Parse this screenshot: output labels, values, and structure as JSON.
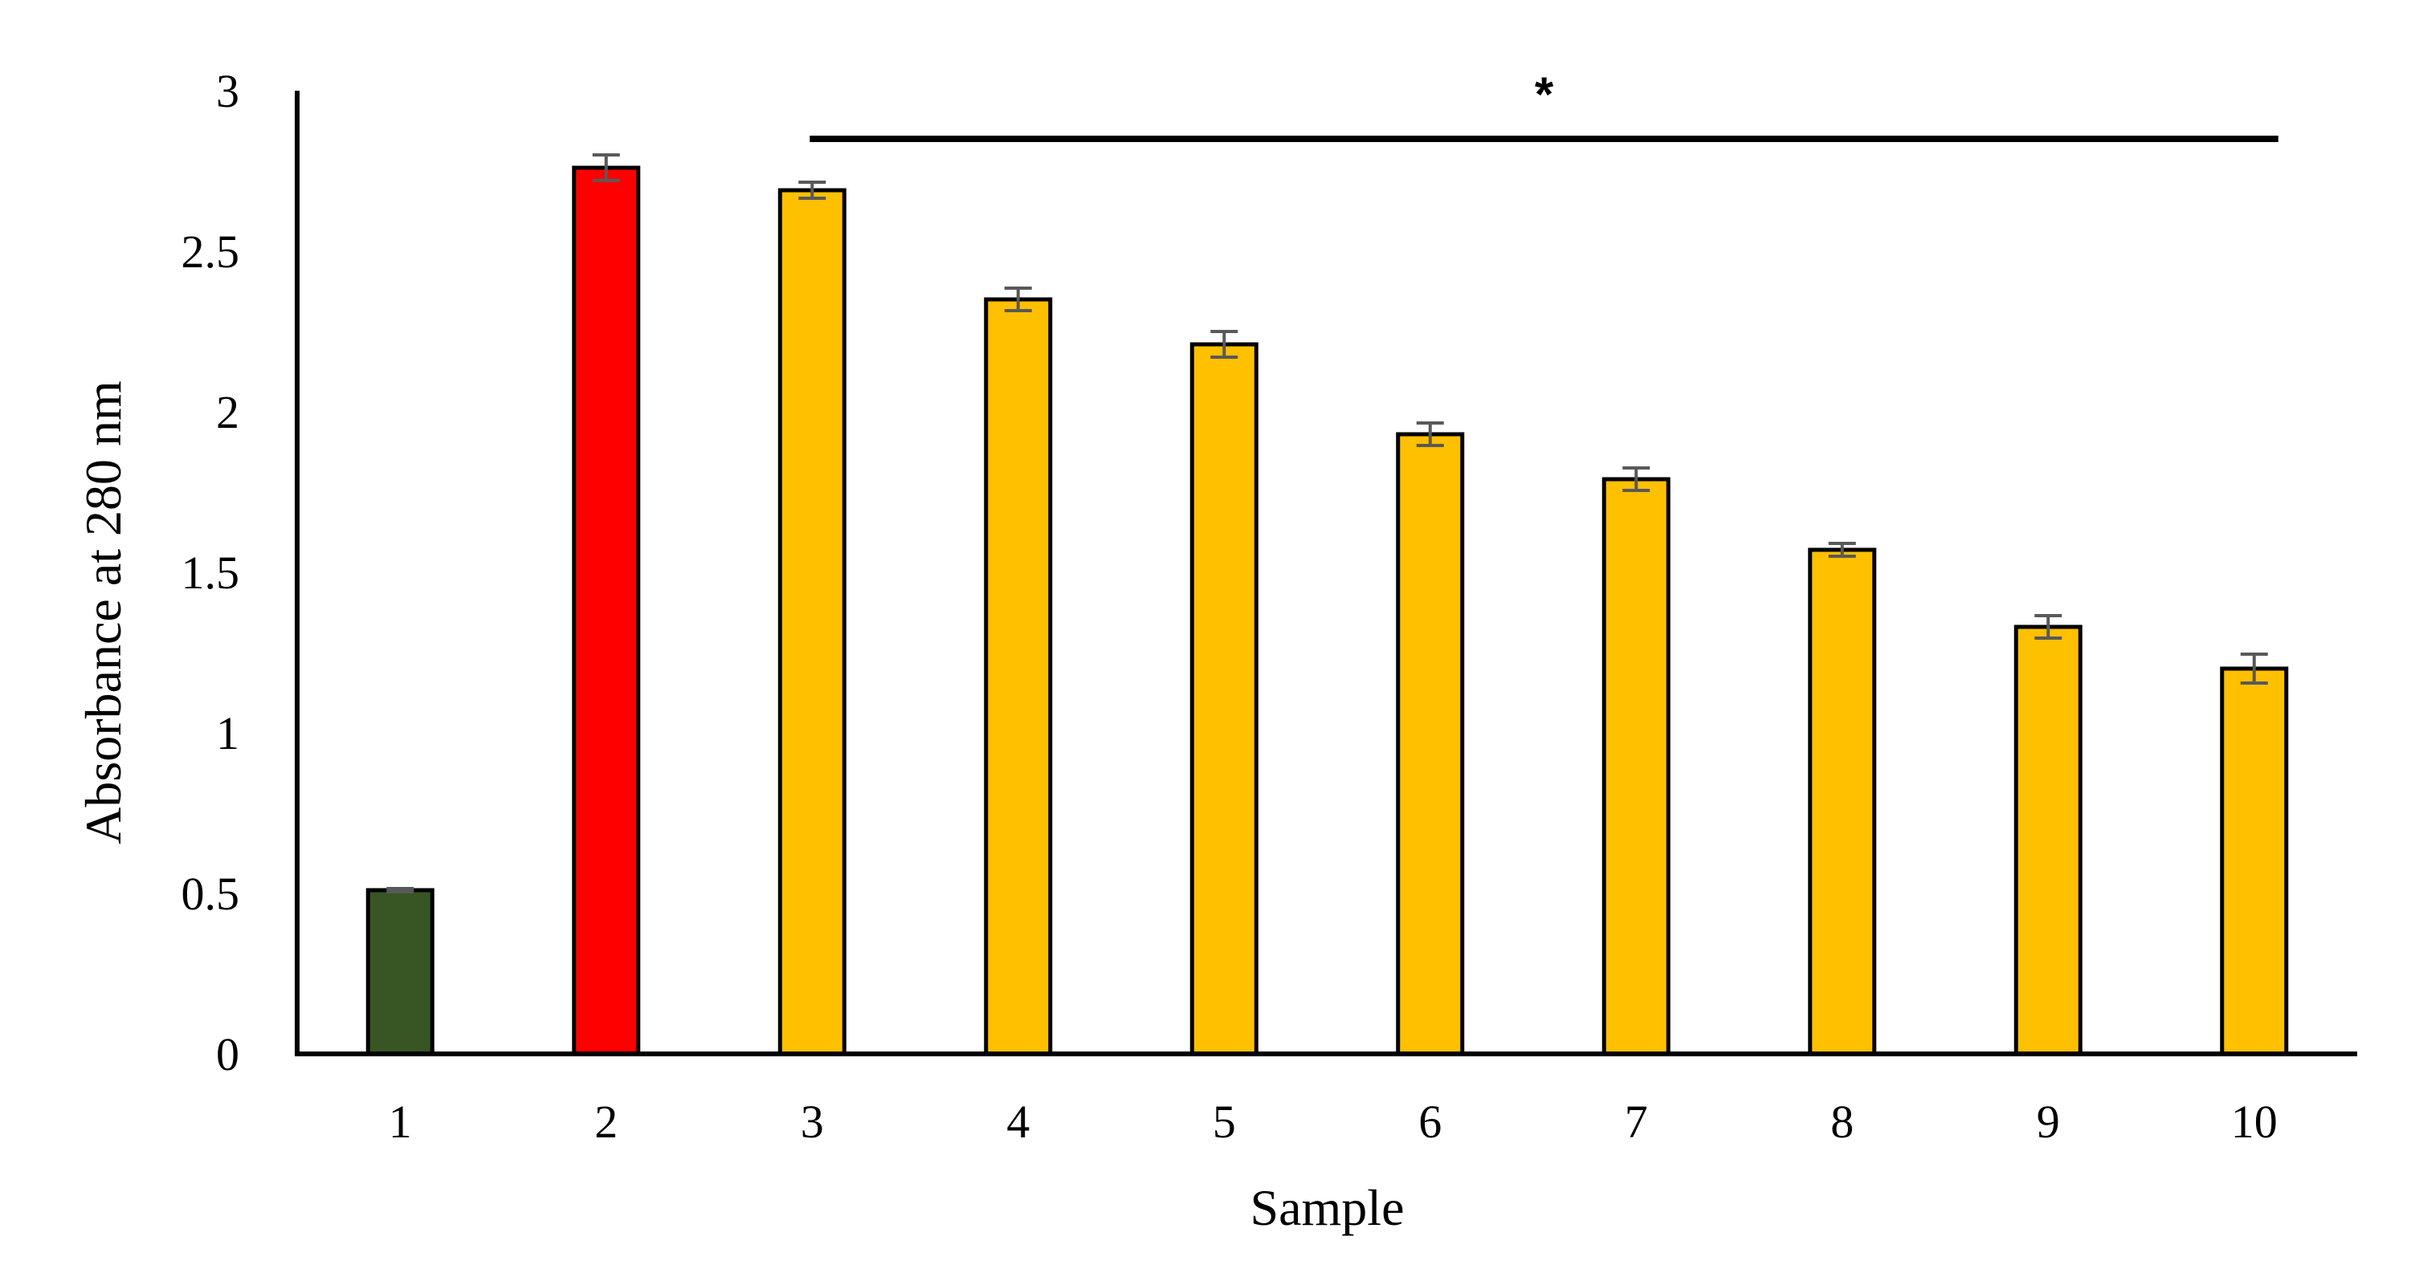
{
  "chart_data": {
    "type": "bar",
    "title": "",
    "xlabel": "Sample",
    "ylabel": "Absorbance at 280 nm",
    "ylim": [
      0,
      3
    ],
    "yticks": [
      "0",
      "0.5",
      "1",
      "1.5",
      "2",
      "2.5",
      "3"
    ],
    "grid": false,
    "legend": "none",
    "categories": [
      "1",
      "2",
      "3",
      "4",
      "5",
      "6",
      "7",
      "8",
      "9",
      "10"
    ],
    "values": [
      0.51,
      2.76,
      2.69,
      2.35,
      2.21,
      1.93,
      1.79,
      1.57,
      1.33,
      1.2
    ],
    "errors": [
      0.005,
      0.04,
      0.025,
      0.035,
      0.04,
      0.035,
      0.035,
      0.02,
      0.035,
      0.045
    ],
    "colors": [
      "#375623",
      "#ff0000",
      "#ffc000",
      "#ffc000",
      "#ffc000",
      "#ffc000",
      "#ffc000",
      "#ffc000",
      "#ffc000",
      "#ffc000"
    ],
    "bar_outline_color": "#000000",
    "error_bar_color": "#595959",
    "significance": {
      "label": "*",
      "from_category": "3",
      "to_category": "10",
      "level": 2.85
    }
  }
}
